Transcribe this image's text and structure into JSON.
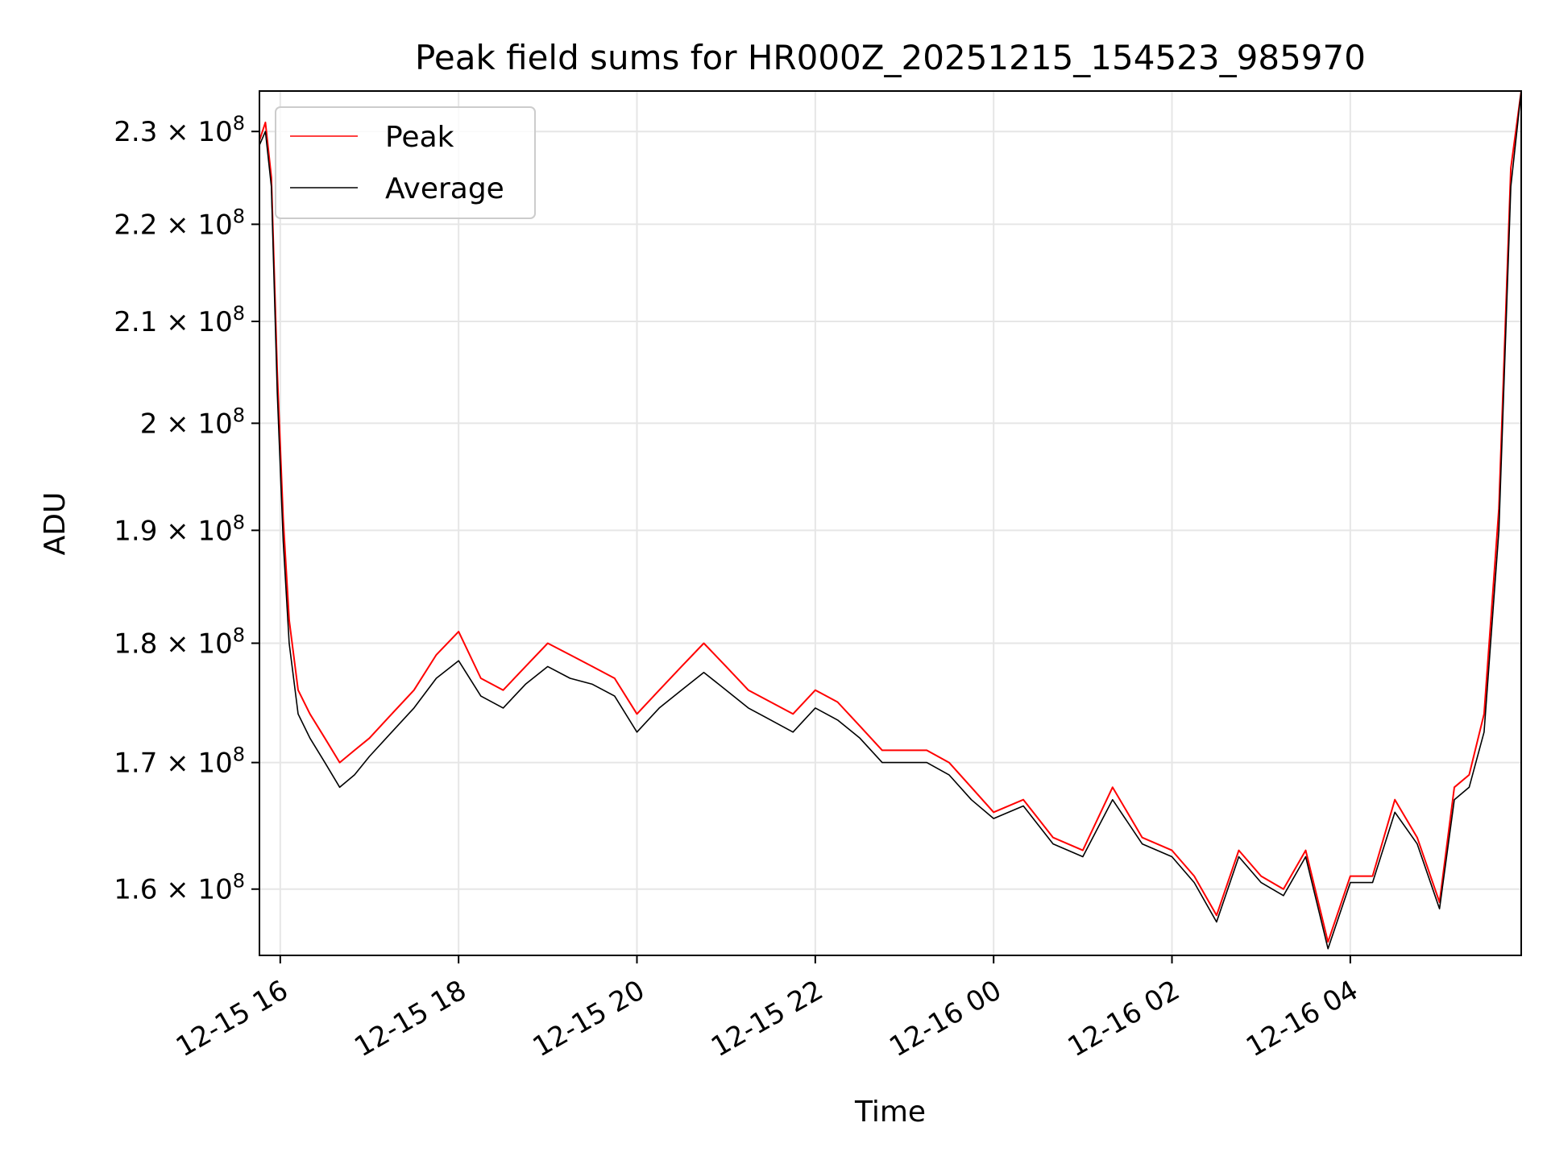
{
  "chart_data": {
    "type": "line",
    "title": "Peak field sums for HR000Z_20251215_154523_985970",
    "xlabel": "Time",
    "ylabel": "ADU",
    "xlim": [
      "2025-12-15 15:46",
      "2025-12-16 05:55"
    ],
    "ylim": [
      155000000,
      234500000
    ],
    "yscale": "log",
    "grid": true,
    "legend_position": "top-left",
    "x_ticks": [
      "2025-12-15 16:00",
      "2025-12-15 18:00",
      "2025-12-15 20:00",
      "2025-12-15 22:00",
      "2025-12-16 00:00",
      "2025-12-16 02:00",
      "2025-12-16 04:00"
    ],
    "x_tick_labels": [
      "12-15 16",
      "12-15 18",
      "12-15 20",
      "12-15 22",
      "12-16 00",
      "12-16 02",
      "12-16 04"
    ],
    "y_ticks": [
      160000000,
      170000000,
      180000000,
      190000000,
      200000000,
      210000000,
      220000000,
      230000000
    ],
    "y_tick_labels": [
      {
        "mantissa": "1.6",
        "exp": "8"
      },
      {
        "mantissa": "1.7",
        "exp": "8"
      },
      {
        "mantissa": "1.8",
        "exp": "8"
      },
      {
        "mantissa": "1.9",
        "exp": "8"
      },
      {
        "mantissa": "2",
        "exp": "8"
      },
      {
        "mantissa": "2.1",
        "exp": "8"
      },
      {
        "mantissa": "2.2",
        "exp": "8"
      },
      {
        "mantissa": "2.3",
        "exp": "8"
      }
    ],
    "series": [
      {
        "name": "Peak",
        "color": "#ff0000",
        "x": [
          "2025-12-15 15:46",
          "2025-12-15 15:50",
          "2025-12-15 15:54",
          "2025-12-15 15:58",
          "2025-12-15 16:02",
          "2025-12-15 16:06",
          "2025-12-15 16:12",
          "2025-12-15 16:20",
          "2025-12-15 16:30",
          "2025-12-15 16:40",
          "2025-12-15 16:50",
          "2025-12-15 17:00",
          "2025-12-15 17:15",
          "2025-12-15 17:30",
          "2025-12-15 17:45",
          "2025-12-15 18:00",
          "2025-12-15 18:15",
          "2025-12-15 18:30",
          "2025-12-15 18:45",
          "2025-12-15 19:00",
          "2025-12-15 19:15",
          "2025-12-15 19:30",
          "2025-12-15 19:45",
          "2025-12-15 20:00",
          "2025-12-15 20:15",
          "2025-12-15 20:30",
          "2025-12-15 20:45",
          "2025-12-15 21:00",
          "2025-12-15 21:15",
          "2025-12-15 21:30",
          "2025-12-15 21:45",
          "2025-12-15 22:00",
          "2025-12-15 22:15",
          "2025-12-15 22:30",
          "2025-12-15 22:45",
          "2025-12-15 23:00",
          "2025-12-15 23:15",
          "2025-12-15 23:30",
          "2025-12-15 23:45",
          "2025-12-16 00:00",
          "2025-12-16 00:20",
          "2025-12-16 00:40",
          "2025-12-16 01:00",
          "2025-12-16 01:20",
          "2025-12-16 01:40",
          "2025-12-16 02:00",
          "2025-12-16 02:15",
          "2025-12-16 02:30",
          "2025-12-16 02:45",
          "2025-12-16 03:00",
          "2025-12-16 03:15",
          "2025-12-16 03:30",
          "2025-12-16 03:45",
          "2025-12-16 04:00",
          "2025-12-16 04:15",
          "2025-12-16 04:30",
          "2025-12-16 04:45",
          "2025-12-16 05:00",
          "2025-12-16 05:10",
          "2025-12-16 05:20",
          "2025-12-16 05:30",
          "2025-12-16 05:40",
          "2025-12-16 05:48",
          "2025-12-16 05:55"
        ],
        "values": [
          229000000,
          231000000,
          225000000,
          205000000,
          191000000,
          182000000,
          176000000,
          174000000,
          172000000,
          170000000,
          171000000,
          172000000,
          174000000,
          176000000,
          179000000,
          181000000,
          177000000,
          176000000,
          178000000,
          180000000,
          179000000,
          178000000,
          177000000,
          174000000,
          176000000,
          178000000,
          180000000,
          178000000,
          176000000,
          175000000,
          174000000,
          176000000,
          175000000,
          173000000,
          171000000,
          171000000,
          171000000,
          170000000,
          168000000,
          166000000,
          167000000,
          164000000,
          163000000,
          168000000,
          164000000,
          163000000,
          161000000,
          158000000,
          163000000,
          161000000,
          160000000,
          163000000,
          156000000,
          161000000,
          161000000,
          167000000,
          164000000,
          159000000,
          168000000,
          169000000,
          174000000,
          192000000,
          226000000,
          234500000
        ]
      },
      {
        "name": "Average",
        "color": "#000000",
        "x": [
          "2025-12-15 15:46",
          "2025-12-15 15:50",
          "2025-12-15 15:54",
          "2025-12-15 15:58",
          "2025-12-15 16:02",
          "2025-12-15 16:06",
          "2025-12-15 16:12",
          "2025-12-15 16:20",
          "2025-12-15 16:30",
          "2025-12-15 16:40",
          "2025-12-15 16:50",
          "2025-12-15 17:00",
          "2025-12-15 17:15",
          "2025-12-15 17:30",
          "2025-12-15 17:45",
          "2025-12-15 18:00",
          "2025-12-15 18:15",
          "2025-12-15 18:30",
          "2025-12-15 18:45",
          "2025-12-15 19:00",
          "2025-12-15 19:15",
          "2025-12-15 19:30",
          "2025-12-15 19:45",
          "2025-12-15 20:00",
          "2025-12-15 20:15",
          "2025-12-15 20:30",
          "2025-12-15 20:45",
          "2025-12-15 21:00",
          "2025-12-15 21:15",
          "2025-12-15 21:30",
          "2025-12-15 21:45",
          "2025-12-15 22:00",
          "2025-12-15 22:15",
          "2025-12-15 22:30",
          "2025-12-15 22:45",
          "2025-12-15 23:00",
          "2025-12-15 23:15",
          "2025-12-15 23:30",
          "2025-12-15 23:45",
          "2025-12-16 00:00",
          "2025-12-16 00:20",
          "2025-12-16 00:40",
          "2025-12-16 01:00",
          "2025-12-16 01:20",
          "2025-12-16 01:40",
          "2025-12-16 02:00",
          "2025-12-16 02:15",
          "2025-12-16 02:30",
          "2025-12-16 02:45",
          "2025-12-16 03:00",
          "2025-12-16 03:15",
          "2025-12-16 03:30",
          "2025-12-16 03:45",
          "2025-12-16 04:00",
          "2025-12-16 04:15",
          "2025-12-16 04:30",
          "2025-12-16 04:45",
          "2025-12-16 05:00",
          "2025-12-16 05:10",
          "2025-12-16 05:20",
          "2025-12-16 05:30",
          "2025-12-16 05:40",
          "2025-12-16 05:48",
          "2025-12-16 05:55"
        ],
        "values": [
          228500000,
          230000000,
          224000000,
          203000000,
          189000000,
          180000000,
          174000000,
          172000000,
          170000000,
          168000000,
          169000000,
          170500000,
          172500000,
          174500000,
          177000000,
          178500000,
          175500000,
          174500000,
          176500000,
          178000000,
          177000000,
          176500000,
          175500000,
          172500000,
          174500000,
          176000000,
          177500000,
          176000000,
          174500000,
          173500000,
          172500000,
          174500000,
          173500000,
          172000000,
          170000000,
          170000000,
          170000000,
          169000000,
          167000000,
          165500000,
          166500000,
          163500000,
          162500000,
          167000000,
          163500000,
          162500000,
          160500000,
          157500000,
          162500000,
          160500000,
          159500000,
          162500000,
          155500000,
          160500000,
          160500000,
          166000000,
          163500000,
          158500000,
          167000000,
          168000000,
          172500000,
          190000000,
          224000000,
          234500000
        ]
      }
    ]
  }
}
